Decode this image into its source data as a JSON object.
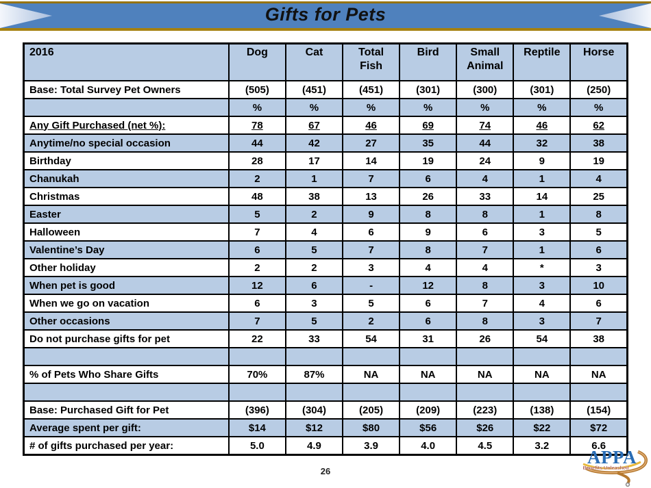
{
  "slide": {
    "title": "Gifts for Pets",
    "page_number": "26",
    "colors": {
      "banner_blue": "#4f81bd",
      "banner_gold": "#9b770b",
      "row_shaded_blue": "#b8cce4",
      "row_white": "#ffffff",
      "table_border": "#000000",
      "logo_blue": "#2a6db5",
      "logo_tagline_red": "#8b1f1f",
      "logo_leash_brown": "#b5792f",
      "logo_swoosh_gold": "#e9b93c"
    },
    "logo": {
      "text": "APPA",
      "tagline": "Benefits Unleashed"
    }
  },
  "table": {
    "year_header": "2016",
    "columns": [
      "Dog",
      "Cat",
      "Total Fish",
      "Bird",
      "Small Animal",
      "Reptile",
      "Horse"
    ],
    "rows": [
      {
        "label": "Base: Total Survey Pet Owners",
        "values": [
          "(505)",
          "(451)",
          "(451)",
          "(301)",
          "(300)",
          "(301)",
          "(250)"
        ]
      },
      {
        "label": "",
        "values": [
          "%",
          "%",
          "%",
          "%",
          "%",
          "%",
          "%"
        ]
      },
      {
        "label": "Any Gift Purchased (net %):",
        "values": [
          "78",
          "67",
          "46",
          "69",
          "74",
          "46",
          "62"
        ],
        "underline": true
      },
      {
        "label": "Anytime/no special occasion",
        "values": [
          "44",
          "42",
          "27",
          "35",
          "44",
          "32",
          "38"
        ]
      },
      {
        "label": "Birthday",
        "values": [
          "28",
          "17",
          "14",
          "19",
          "24",
          "9",
          "19"
        ]
      },
      {
        "label": "Chanukah",
        "values": [
          "2",
          "1",
          "7",
          "6",
          "4",
          "1",
          "4"
        ]
      },
      {
        "label": "Christmas",
        "values": [
          "48",
          "38",
          "13",
          "26",
          "33",
          "14",
          "25"
        ]
      },
      {
        "label": "Easter",
        "values": [
          "5",
          "2",
          "9",
          "8",
          "8",
          "1",
          "8"
        ]
      },
      {
        "label": "Halloween",
        "values": [
          "7",
          "4",
          "6",
          "9",
          "6",
          "3",
          "5"
        ]
      },
      {
        "label": "Valentine’s Day",
        "values": [
          "6",
          "5",
          "7",
          "8",
          "7",
          "1",
          "6"
        ]
      },
      {
        "label": "Other holiday",
        "values": [
          "2",
          "2",
          "3",
          "4",
          "4",
          "*",
          "3"
        ]
      },
      {
        "label": "When pet is good",
        "values": [
          "12",
          "6",
          "-",
          "12",
          "8",
          "3",
          "10"
        ]
      },
      {
        "label": "When we go on vacation",
        "values": [
          "6",
          "3",
          "5",
          "6",
          "7",
          "4",
          "6"
        ]
      },
      {
        "label": "Other occasions",
        "values": [
          "7",
          "5",
          "2",
          "6",
          "8",
          "3",
          "7"
        ]
      },
      {
        "label": "Do not purchase gifts for pet",
        "values": [
          "22",
          "33",
          "54",
          "31",
          "26",
          "54",
          "38"
        ]
      },
      {
        "label": "",
        "values": [
          "",
          "",
          "",
          "",
          "",
          "",
          ""
        ]
      },
      {
        "label": "% of Pets Who Share Gifts",
        "values": [
          "70%",
          "87%",
          "NA",
          "NA",
          "NA",
          "NA",
          "NA"
        ]
      },
      {
        "label": "",
        "values": [
          "",
          "",
          "",
          "",
          "",
          "",
          ""
        ]
      },
      {
        "label": "Base: Purchased Gift for Pet",
        "values": [
          "(396)",
          "(304)",
          "(205)",
          "(209)",
          "(223)",
          "(138)",
          "(154)"
        ]
      },
      {
        "label": "Average spent per gift:",
        "values": [
          "$14",
          "$12",
          "$80",
          "$56",
          "$26",
          "$22",
          "$72"
        ]
      },
      {
        "label": "# of gifts purchased per year:",
        "values": [
          "5.0",
          "4.9",
          "3.9",
          "4.0",
          "4.5",
          "3.2",
          "6.6"
        ]
      }
    ]
  }
}
